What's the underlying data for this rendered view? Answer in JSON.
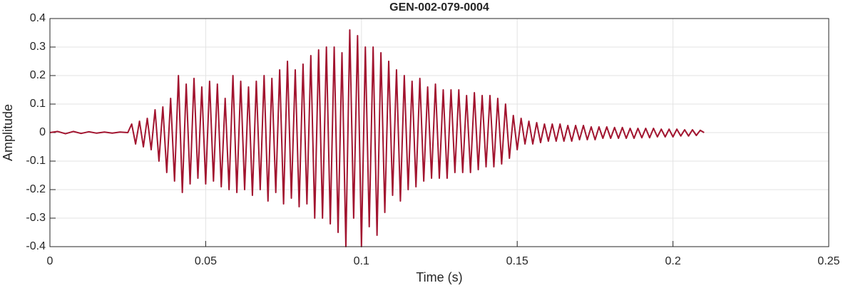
{
  "chart_data": {
    "type": "line",
    "title": "GEN-002-079-0004",
    "xlabel": "Time (s)",
    "ylabel": "Amplitude",
    "color": "#a2142f",
    "grid": true,
    "xlim": [
      0,
      0.25
    ],
    "xticks": [
      0,
      0.05,
      0.1,
      0.15,
      0.2,
      0.25
    ],
    "ylim": [
      -0.4,
      0.4
    ],
    "yticks": [
      -0.4,
      -0.3,
      -0.2,
      -0.1,
      0,
      0.1,
      0.2,
      0.3,
      0.4
    ],
    "x": [
      0,
      0.0025,
      0.005,
      0.0075,
      0.01,
      0.0125,
      0.015,
      0.0175,
      0.02,
      0.0225,
      0.025,
      0.02625,
      0.0275,
      0.02875,
      0.03,
      0.03125,
      0.0325,
      0.03375,
      0.035,
      0.03625,
      0.0375,
      0.03875,
      0.04,
      0.04125,
      0.0425,
      0.04375,
      0.045,
      0.04625,
      0.0475,
      0.04875,
      0.05,
      0.05125,
      0.0525,
      0.05375,
      0.055,
      0.05625,
      0.0575,
      0.05875,
      0.06,
      0.06125,
      0.0625,
      0.06375,
      0.065,
      0.06625,
      0.0675,
      0.06875,
      0.07,
      0.07125,
      0.0725,
      0.07375,
      0.075,
      0.07625,
      0.0775,
      0.07875,
      0.08,
      0.08125,
      0.0825,
      0.08375,
      0.085,
      0.08625,
      0.0875,
      0.08875,
      0.09,
      0.09125,
      0.0925,
      0.09375,
      0.095,
      0.09625,
      0.0975,
      0.09875,
      0.1,
      0.10125,
      0.1025,
      0.10375,
      0.105,
      0.10625,
      0.1075,
      0.10875,
      0.11,
      0.11125,
      0.1125,
      0.11375,
      0.115,
      0.11625,
      0.1175,
      0.11875,
      0.12,
      0.12125,
      0.1225,
      0.12375,
      0.125,
      0.12625,
      0.1275,
      0.12875,
      0.13,
      0.13125,
      0.1325,
      0.13375,
      0.135,
      0.13625,
      0.1375,
      0.13875,
      0.14,
      0.14125,
      0.1425,
      0.14375,
      0.145,
      0.14625,
      0.1475,
      0.14875,
      0.15,
      0.15125,
      0.1525,
      0.15375,
      0.155,
      0.15625,
      0.1575,
      0.15875,
      0.16,
      0.16125,
      0.1625,
      0.16375,
      0.165,
      0.16625,
      0.1675,
      0.16875,
      0.17,
      0.17125,
      0.1725,
      0.17375,
      0.175,
      0.17625,
      0.1775,
      0.17875,
      0.18,
      0.18125,
      0.1825,
      0.18375,
      0.185,
      0.18625,
      0.1875,
      0.18875,
      0.19,
      0.19125,
      0.1925,
      0.19375,
      0.195,
      0.19625,
      0.1975,
      0.19875,
      0.2,
      0.20125,
      0.2025,
      0.20375,
      0.205,
      0.20625,
      0.2075,
      0.20875,
      0.21
    ],
    "values": [
      0,
      0.004,
      -0.004,
      0.004,
      -0.003,
      0.003,
      -0.002,
      0.002,
      -0.002,
      0.002,
      0,
      0.03,
      -0.04,
      0.04,
      -0.05,
      0.05,
      -0.06,
      0.08,
      -0.1,
      0.09,
      -0.14,
      0.12,
      -0.17,
      0.2,
      -0.21,
      0.17,
      -0.18,
      0.19,
      -0.16,
      0.16,
      -0.18,
      0.18,
      -0.17,
      0.17,
      -0.19,
      0.12,
      -0.2,
      0.2,
      -0.21,
      0.18,
      -0.2,
      0.16,
      -0.22,
      0.18,
      -0.2,
      0.2,
      -0.24,
      0.19,
      -0.21,
      0.22,
      -0.25,
      0.25,
      -0.23,
      0.22,
      -0.26,
      0.24,
      -0.25,
      0.27,
      -0.3,
      0.29,
      -0.3,
      0.3,
      -0.32,
      0.3,
      -0.35,
      0.28,
      -0.4,
      0.36,
      -0.3,
      0.34,
      -0.4,
      0.3,
      -0.33,
      0.3,
      -0.36,
      0.28,
      -0.28,
      0.25,
      -0.22,
      0.22,
      -0.24,
      0.2,
      -0.2,
      0.18,
      -0.19,
      0.19,
      -0.17,
      0.16,
      -0.16,
      0.17,
      -0.16,
      0.15,
      -0.16,
      0.15,
      -0.14,
      0.15,
      -0.14,
      0.13,
      -0.14,
      0.14,
      -0.13,
      0.13,
      -0.12,
      0.13,
      -0.12,
      0.12,
      -0.11,
      0.1,
      -0.09,
      0.06,
      -0.06,
      0.05,
      -0.04,
      0.04,
      -0.04,
      0.035,
      -0.035,
      0.03,
      -0.03,
      0.03,
      -0.03,
      0.03,
      -0.03,
      0.025,
      -0.03,
      0.025,
      -0.025,
      0.025,
      -0.025,
      0.02,
      -0.025,
      0.02,
      -0.02,
      0.02,
      -0.02,
      0.018,
      -0.02,
      0.018,
      -0.02,
      0.015,
      -0.02,
      0.015,
      -0.018,
      0.015,
      -0.018,
      0.015,
      -0.015,
      0.012,
      -0.015,
      0.012,
      -0.015,
      0.012,
      -0.012,
      0.01,
      -0.012,
      0.01,
      -0.01,
      0.008,
      0
    ]
  }
}
